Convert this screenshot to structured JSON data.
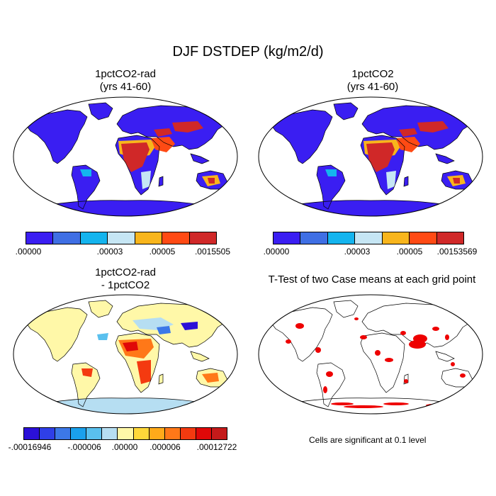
{
  "figure_title": "DJF DSTDEP (kg/m2/d)",
  "colors": {
    "ocean": "#ffffff",
    "coast": "#000000",
    "sig": "#ee0000"
  },
  "panels": [
    {
      "title_lines": [
        "1pctCO2-rad",
        "(yrs 41-60)"
      ],
      "field": "magnitude",
      "colorbar": {
        "colors": [
          "#3a1ef2",
          "#3f6fe4",
          "#14b4ee",
          "#c6e6f4",
          "#f8b51c",
          "#ff4a14",
          "#d02828"
        ],
        "labels": [
          ".00000",
          ".00003",
          ".00005",
          ".0015505"
        ]
      }
    },
    {
      "title_lines": [
        "1pctCO2",
        "(yrs 41-60)"
      ],
      "field": "magnitude",
      "colorbar": {
        "colors": [
          "#3a1ef2",
          "#3f6fe4",
          "#14b4ee",
          "#c6e6f4",
          "#f8b51c",
          "#ff4a14",
          "#d02828"
        ],
        "labels": [
          ".00000",
          ".00003",
          ".00005",
          ".00153569"
        ]
      }
    },
    {
      "title_lines": [
        "1pctCO2-rad",
        "- 1pctCO2"
      ],
      "field": "difference",
      "colorbar": {
        "colors": [
          "#2b10d8",
          "#2f3fe8",
          "#3c78e8",
          "#1aa0ec",
          "#5ac0ee",
          "#b6def2",
          "#fff8a8",
          "#ffd83a",
          "#ffaa1a",
          "#ff7818",
          "#f43a10",
          "#e00808",
          "#c41a1a"
        ],
        "labels": [
          "-.00016946",
          "-.000006",
          ".00000",
          ".000006",
          ".00012722"
        ]
      }
    },
    {
      "title_lines": [
        "T-Test of two Case means at each grid point"
      ],
      "field": "significance",
      "note": "Cells are significant at 0.1 level"
    }
  ]
}
